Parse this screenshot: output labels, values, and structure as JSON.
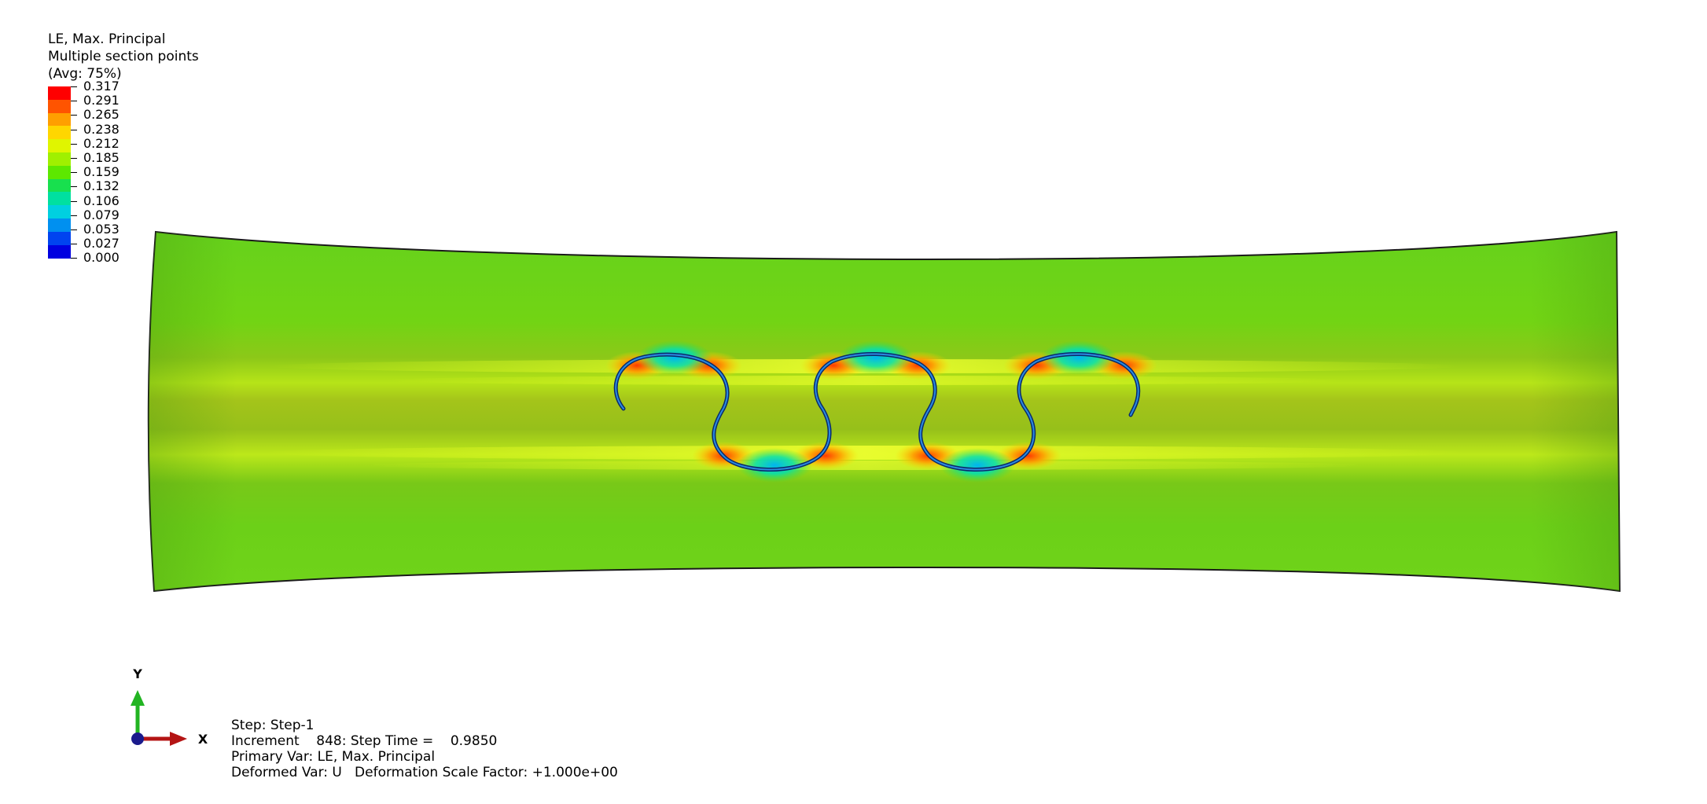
{
  "legend": {
    "title_line1": "LE, Max. Principal",
    "title_line2": "Multiple section points",
    "title_line3": "(Avg: 75%)",
    "ticks": [
      "0.317",
      "0.291",
      "0.265",
      "0.238",
      "0.212",
      "0.185",
      "0.159",
      "0.132",
      "0.106",
      "0.079",
      "0.053",
      "0.027",
      "0.000"
    ],
    "colors": [
      "#ff0000",
      "#ff5400",
      "#ff9f00",
      "#ffd600",
      "#e0f500",
      "#a0f000",
      "#5de800",
      "#18e04e",
      "#00e0a0",
      "#00d0e0",
      "#0090f0",
      "#0044f0",
      "#0000e0"
    ]
  },
  "triad": {
    "y_label": "Y",
    "x_label": "X"
  },
  "info": {
    "step": "Step: Step-1",
    "increment": "Increment    848: Step Time =    0.9850",
    "primary_var": "Primary Var: LE, Max. Principal",
    "deformed_var": "Deformed Var: U   Deformation Scale Factor: +1.000e+00"
  }
}
